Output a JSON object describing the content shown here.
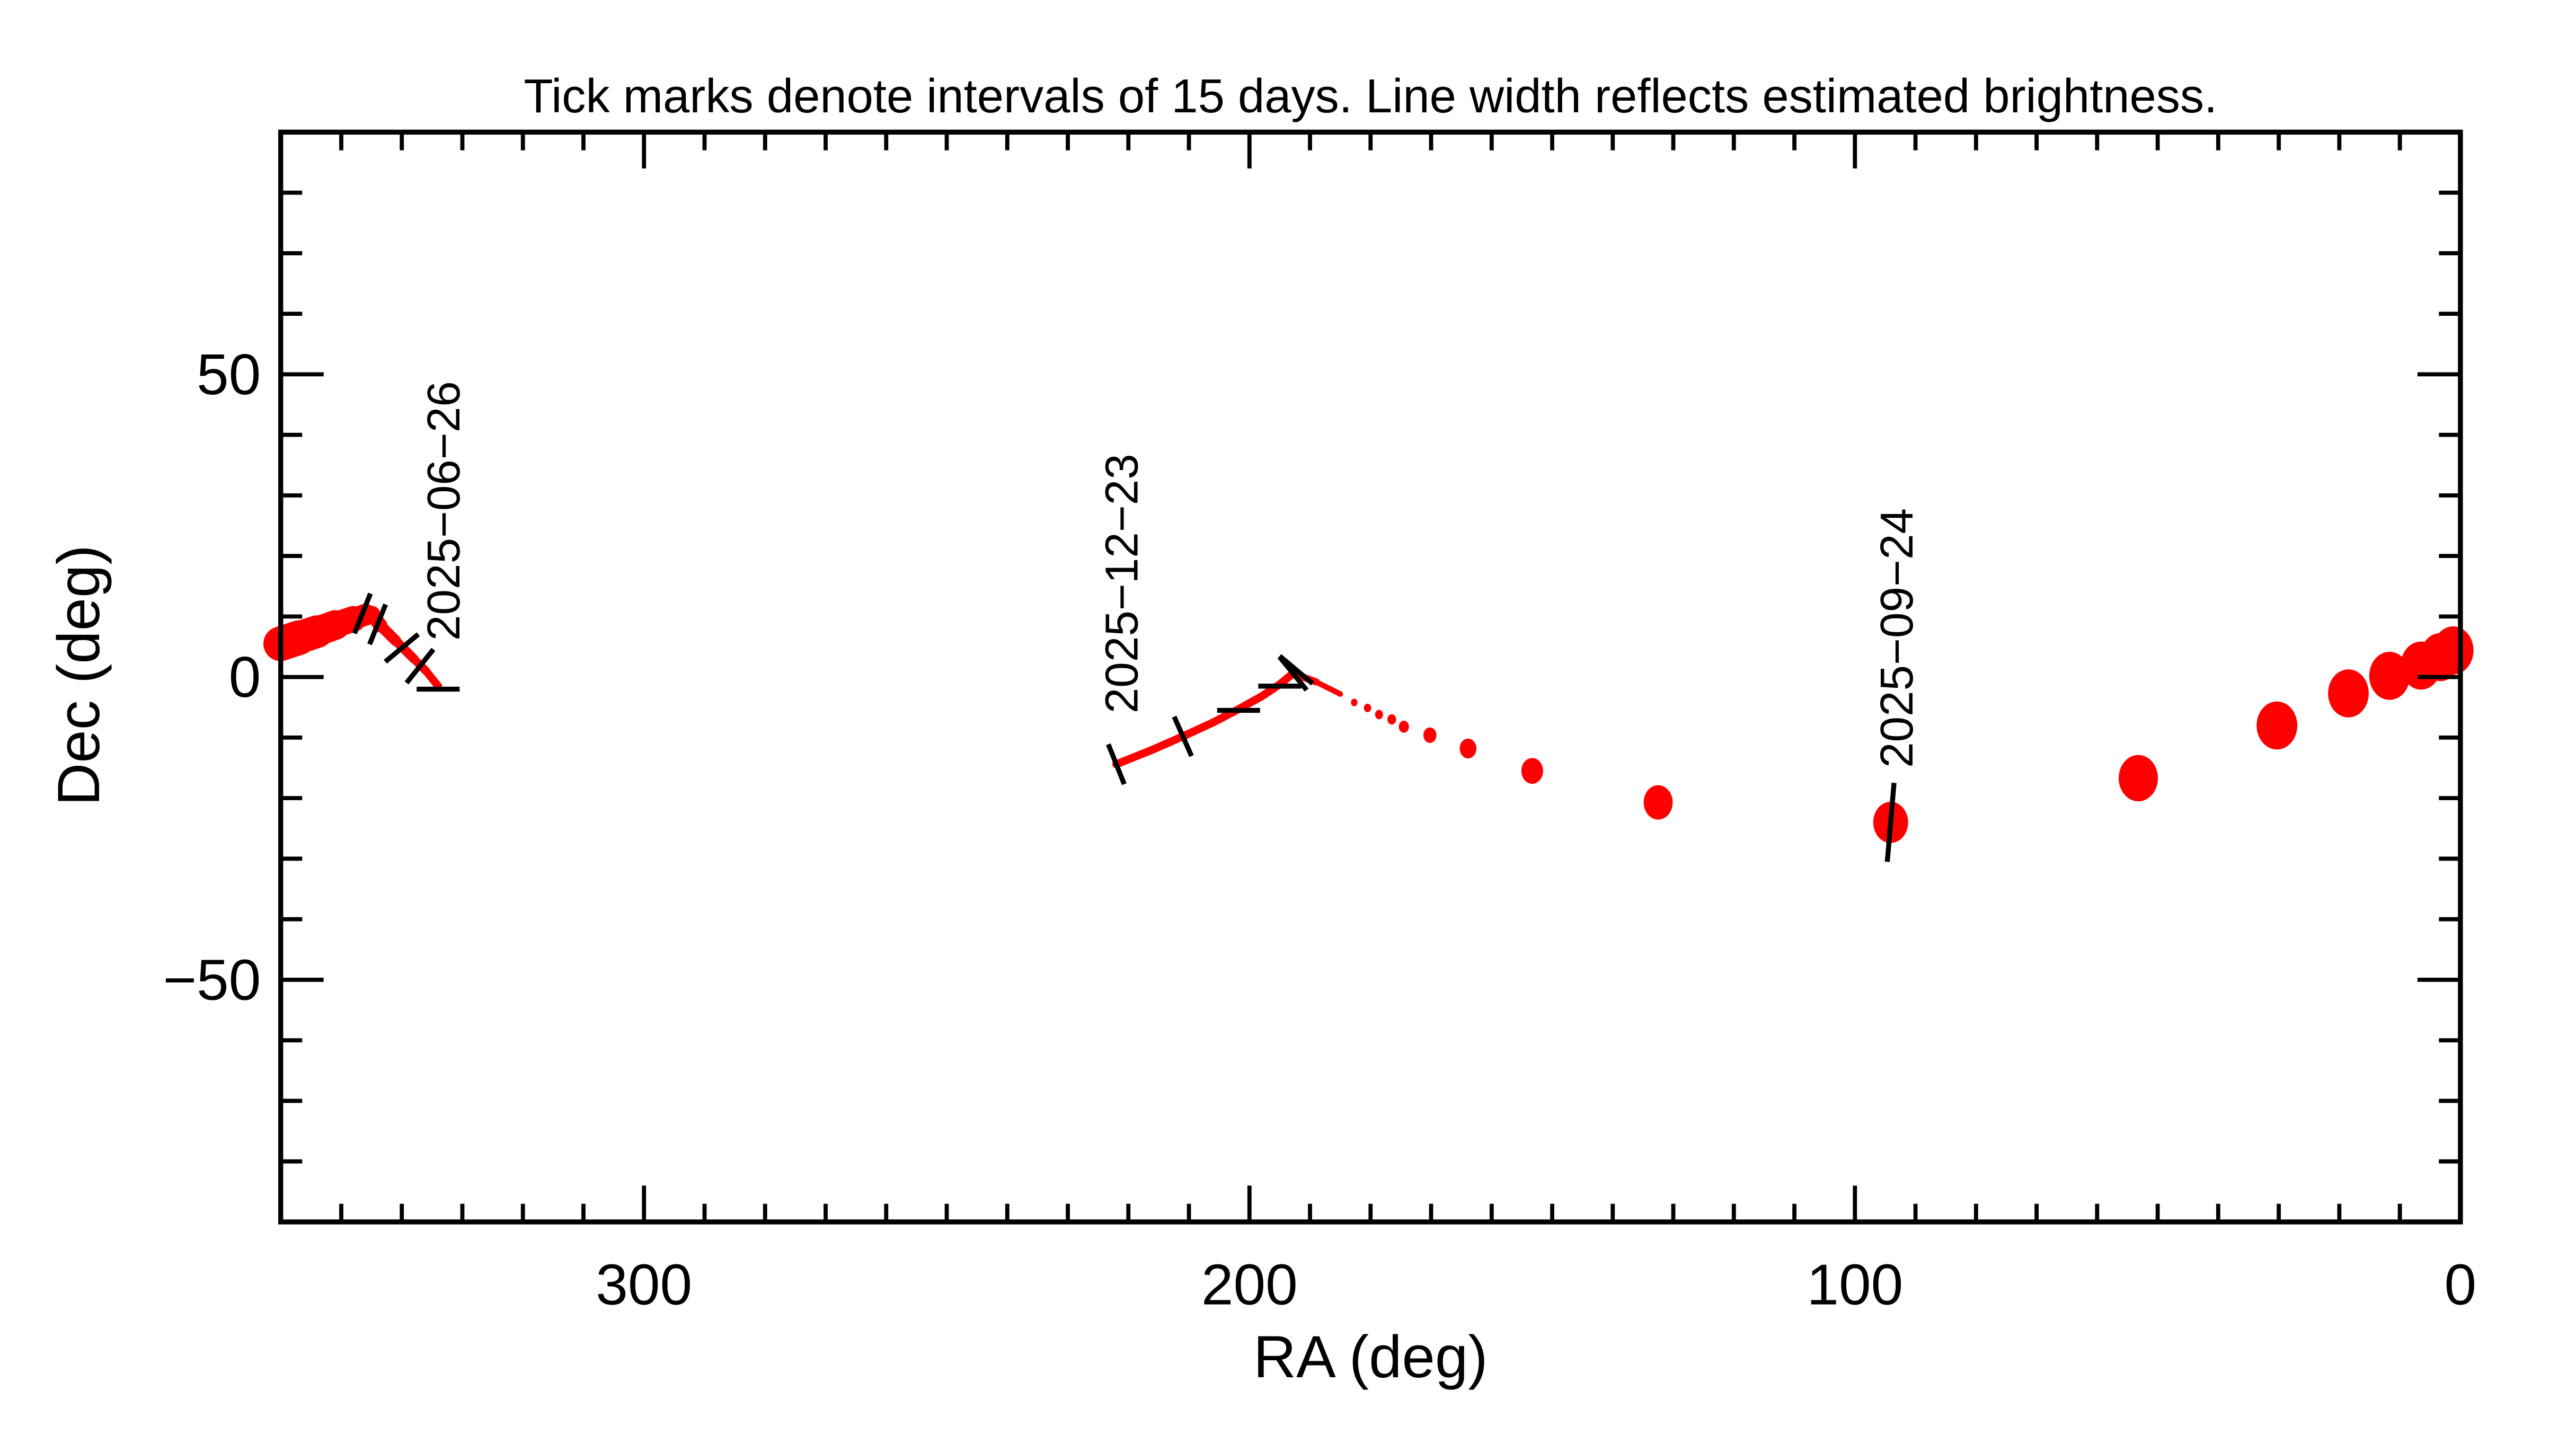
{
  "chart_data": {
    "type": "line",
    "title": "Tick marks denote intervals of 15 days.  Line width reflects estimated brightness.",
    "xlabel": "RA (deg)",
    "ylabel": "Dec (deg)",
    "xlim": [
      360,
      0
    ],
    "ylim": [
      -90,
      90
    ],
    "x_reversed": true,
    "x_major_ticks": [
      300,
      200,
      100,
      0
    ],
    "x_tick_labels": [
      "300",
      "200",
      "100",
      "0"
    ],
    "x_minor_step": 10,
    "y_major_ticks": [
      50,
      0,
      -50
    ],
    "y_tick_labels": [
      "50",
      "0",
      "−50"
    ],
    "y_minor_step": 10,
    "grid": false,
    "colors": {
      "track": "#ff0000",
      "ticks": "#000000",
      "axes": "#000000"
    },
    "series": [
      {
        "style": "line",
        "points": [
          [
            360,
            5.5,
            9
          ],
          [
            357,
            6.5,
            8.5
          ],
          [
            354,
            7.5,
            8
          ],
          [
            351,
            8.6,
            7
          ],
          [
            348,
            9.6,
            6
          ],
          [
            346,
            10.3,
            5
          ],
          [
            345,
            10.3,
            4
          ],
          [
            343.5,
            8.5,
            3
          ],
          [
            341,
            6,
            2.5
          ],
          [
            338,
            3,
            2.2
          ],
          [
            336,
            1,
            2
          ],
          [
            334,
            -1.5,
            2
          ]
        ]
      },
      {
        "style": "line",
        "points": [
          [
            222,
            -14.4,
            2
          ],
          [
            216,
            -12,
            2
          ],
          [
            211,
            -9.8,
            2
          ],
          [
            206,
            -7.5,
            2
          ],
          [
            201.8,
            -5.3,
            2
          ],
          [
            198,
            -3.2,
            2
          ],
          [
            195,
            -1.2,
            2
          ],
          [
            192.8,
            0.6,
            2
          ],
          [
            189,
            -0.8,
            1.6
          ],
          [
            185,
            -2.8,
            1.2
          ]
        ]
      },
      {
        "style": "dots",
        "points": [
          [
            182.7,
            -4.2,
            0.9
          ],
          [
            180.5,
            -5.1,
            1
          ],
          [
            178.6,
            -6.2,
            1.1
          ],
          [
            176.5,
            -7,
            1.2
          ],
          [
            174.5,
            -8.2,
            1.4
          ],
          [
            170.2,
            -9.6,
            1.8
          ],
          [
            163.9,
            -11.8,
            2.3
          ],
          [
            153.3,
            -15.5,
            3
          ],
          [
            132.5,
            -20.7,
            4
          ],
          [
            94.1,
            -24,
            4.8
          ],
          [
            53.2,
            -16.7,
            5.4
          ],
          [
            30.3,
            -8,
            5.6
          ],
          [
            18.5,
            -2.7,
            5.6
          ],
          [
            11.7,
            0.2,
            5.6
          ],
          [
            6.5,
            1.9,
            5.6
          ],
          [
            3.3,
            3.3,
            5.6
          ],
          [
            1.2,
            4.4,
            5.6
          ]
        ]
      }
    ],
    "interval_ticks": [
      [
        346.5,
        10.5
      ],
      [
        344,
        8.7
      ],
      [
        340,
        4.8
      ],
      [
        337,
        1.8
      ],
      [
        334,
        -2
      ],
      [
        222,
        -14.4
      ],
      [
        211,
        -9.8
      ],
      [
        201.8,
        -5.5
      ],
      [
        195,
        -1.5
      ],
      [
        192.8,
        0.6
      ],
      [
        192.3,
        1.2
      ],
      [
        94.1,
        -24
      ]
    ],
    "date_labels": [
      {
        "text": "2025−06−26",
        "ra": 333.5,
        "dec": 6
      },
      {
        "text": "2025−12−23",
        "ra": 221.5,
        "dec": -6
      },
      {
        "text": "2025−09−24",
        "ra": 93.5,
        "dec": -15
      }
    ]
  }
}
